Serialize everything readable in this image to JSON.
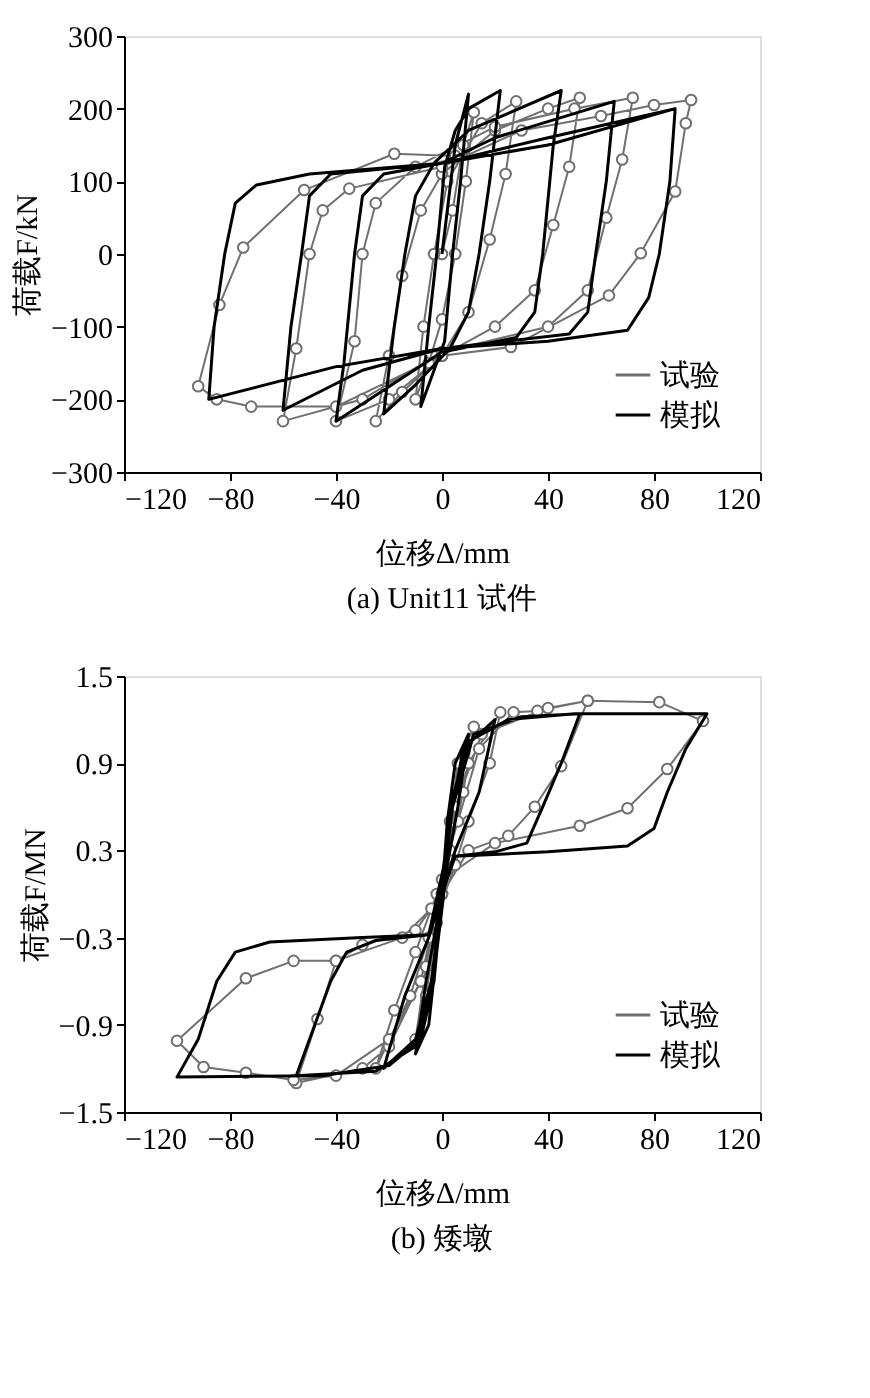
{
  "chart_data": [
    {
      "type": "line",
      "title": "(a) Unit11 试件",
      "xlabel": "位移Δ/mm",
      "ylabel": "荷载F/kN",
      "xlim": [
        -120,
        120
      ],
      "xticks": [
        -120,
        -80,
        -40,
        0,
        40,
        80,
        120
      ],
      "ylim": [
        -300,
        300
      ],
      "yticks": [
        -300,
        -200,
        -100,
        0,
        100,
        200,
        300
      ],
      "legend": "bottom right",
      "series": [
        {
          "name": "试验",
          "color": "#707070",
          "marker": "circle",
          "x": [
            0,
            4,
            8,
            12,
            9,
            5,
            0,
            -5,
            -10,
            -7,
            -3,
            2,
            15,
            28,
            24,
            18,
            10,
            0,
            -15,
            -25,
            -20,
            -15,
            -8,
            0,
            20,
            40,
            52,
            48,
            42,
            35,
            20,
            0,
            -20,
            -40,
            -33,
            -30,
            -25,
            -10,
            20,
            50,
            72,
            68,
            62,
            55,
            40,
            0,
            -30,
            -60,
            -55,
            -50,
            -45,
            -35,
            0,
            30,
            60,
            80,
            94,
            92,
            88,
            75,
            63,
            26,
            0,
            -40,
            -72,
            -85,
            -92,
            -84,
            -75,
            -52,
            -18,
            5
          ],
          "values": [
            0,
            60,
            150,
            195,
            100,
            0,
            -90,
            -150,
            -200,
            -100,
            0,
            100,
            180,
            210,
            110,
            20,
            -80,
            -140,
            -190,
            -230,
            -140,
            -30,
            60,
            110,
            170,
            200,
            215,
            120,
            40,
            -50,
            -100,
            -140,
            -200,
            -230,
            -120,
            0,
            70,
            120,
            175,
            200,
            215,
            130,
            50,
            -50,
            -100,
            -135,
            -200,
            -230,
            -130,
            0,
            60,
            90,
            120,
            170,
            190,
            205,
            212,
            180,
            86,
            1,
            -57,
            -128,
            -140,
            -210,
            -210,
            -200,
            -182,
            -70,
            9,
            88,
            138,
            135
          ]
        },
        {
          "name": "模拟",
          "color": "#000000",
          "marker": "none",
          "x": [
            0,
            5,
            10,
            7,
            4,
            1,
            -4,
            -8,
            -5,
            -2,
            1,
            5,
            10,
            22,
            18,
            14,
            10,
            3,
            -10,
            -22,
            -18,
            -14,
            -10,
            -3,
            10,
            45,
            42,
            38,
            35,
            28,
            0,
            -40,
            -37,
            -33,
            -30,
            -22,
            0,
            20,
            65,
            62,
            58,
            55,
            48,
            0,
            -30,
            -60,
            -57,
            -53,
            -50,
            -42,
            0,
            40,
            88,
            86,
            82,
            78,
            70,
            40,
            0,
            -40,
            -88,
            -86,
            -82,
            -78,
            -70,
            -50,
            0,
            40,
            88
          ],
          "values": [
            0,
            150,
            220,
            100,
            0,
            -120,
            -170,
            -210,
            -100,
            0,
            120,
            170,
            200,
            225,
            100,
            0,
            -80,
            -130,
            -180,
            -220,
            -100,
            0,
            80,
            125,
            170,
            225,
            150,
            0,
            -80,
            -115,
            -135,
            -230,
            -150,
            0,
            80,
            110,
            125,
            160,
            210,
            100,
            0,
            -80,
            -110,
            -130,
            -160,
            -215,
            -100,
            0,
            80,
            110,
            125,
            160,
            200,
            100,
            0,
            -60,
            -105,
            -120,
            -130,
            -155,
            -200,
            -100,
            0,
            70,
            95,
            110,
            125,
            150,
            200
          ]
        }
      ]
    },
    {
      "type": "line",
      "title": "(b) 矮墩",
      "xlabel": "位移Δ/mm",
      "ylabel": "荷载F/MN",
      "xlim": [
        -120,
        120
      ],
      "xticks": [
        -120,
        -80,
        -40,
        0,
        40,
        80,
        120
      ],
      "ylim": [
        -1.5,
        1.5
      ],
      "yticks": [
        -1.5,
        -0.9,
        -0.3,
        0.3,
        0.9,
        1.5
      ],
      "legend": "bottom right",
      "series": [
        {
          "name": "试验",
          "color": "#707070",
          "marker": "circle",
          "x": [
            0,
            3,
            6,
            12,
            8,
            3,
            -2,
            -6,
            -10,
            -6,
            -1,
            4,
            10,
            22,
            18,
            10,
            5,
            -5,
            -12,
            -25,
            -18,
            -10,
            -2,
            6,
            14,
            27,
            36,
            55,
            45,
            35,
            25,
            10,
            0,
            -8,
            -20,
            -30,
            -55,
            -47,
            -40,
            -30,
            -10,
            0,
            5,
            15,
            40,
            55,
            82,
            98.5,
            85,
            70,
            52,
            20,
            0,
            -8,
            -20,
            -40,
            -56,
            -74,
            -90,
            -100,
            -74,
            -56,
            -40,
            -15,
            -4
          ],
          "values": [
            0,
            0.5,
            0.9,
            1.15,
            0.7,
            0.3,
            -0.2,
            -0.7,
            -1.0,
            -0.5,
            0,
            0.5,
            0.9,
            1.25,
            0.9,
            0.5,
            0.2,
            -0.3,
            -0.7,
            -1.2,
            -0.8,
            -0.4,
            0,
            0.5,
            1.0,
            1.25,
            1.26,
            1.33,
            0.88,
            0.6,
            0.4,
            0.3,
            0,
            -0.6,
            -1.05,
            -1.2,
            -1.3,
            -0.86,
            -0.46,
            -0.35,
            -0.25,
            0,
            0.6,
            1.1,
            1.28,
            1.33,
            1.32,
            1.19,
            0.86,
            0.59,
            0.47,
            0.35,
            0.1,
            -0.6,
            -1.0,
            -1.25,
            -1.28,
            -1.23,
            -1.19,
            -1.01,
            -0.58,
            -0.46,
            -0.46,
            -0.3,
            -0.1
          ]
        },
        {
          "name": "模拟",
          "color": "#000000",
          "marker": "none",
          "x": [
            0,
            2,
            5,
            10,
            6,
            2,
            -2,
            -5,
            -10,
            -6,
            -2,
            2,
            8,
            20,
            14,
            5,
            0,
            -4,
            -10,
            -22,
            -14,
            -5,
            0,
            4,
            12,
            30,
            52,
            45,
            38,
            32,
            20,
            5,
            0,
            -3,
            -10,
            -25,
            -55,
            -48,
            -42,
            -36,
            -25,
            -5,
            0,
            3,
            10,
            25,
            50,
            100,
            92,
            85,
            80,
            70,
            40,
            5,
            0,
            -3,
            -8,
            -20,
            -45,
            -100,
            -92,
            -85,
            -78,
            -65,
            -30,
            -5,
            2
          ],
          "values": [
            0,
            0.5,
            0.9,
            1.1,
            0.6,
            0.2,
            -0.4,
            -0.9,
            -1.1,
            -0.6,
            -0.2,
            0.4,
            1.0,
            1.2,
            0.7,
            0.3,
            0,
            -0.6,
            -1.0,
            -1.2,
            -0.7,
            -0.3,
            0,
            0.6,
            1.1,
            1.22,
            1.24,
            0.9,
            0.6,
            0.35,
            0.29,
            0.26,
            0,
            -0.6,
            -1.05,
            -1.22,
            -1.25,
            -0.9,
            -0.6,
            -0.4,
            -0.32,
            -0.28,
            0,
            0.6,
            1.05,
            1.2,
            1.24,
            1.24,
            1.0,
            0.7,
            0.45,
            0.33,
            0.29,
            0.26,
            0,
            -0.6,
            -1.0,
            -1.18,
            -1.25,
            -1.26,
            -1.0,
            -0.6,
            -0.4,
            -0.33,
            -0.3,
            -0.28,
            0.3
          ]
        }
      ]
    }
  ]
}
